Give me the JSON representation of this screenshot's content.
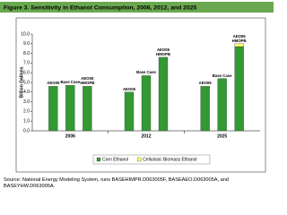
{
  "chart_data": {
    "type": "bar",
    "title": "Figure 3. Sensitivity in Ethanol Consumption, 2006, 2012, and 2025",
    "y_label": "Billion Gallons",
    "groups": [
      "2006",
      "2012",
      "2025"
    ],
    "categories": [
      "AEO05",
      "Base Case",
      "AEO05 HMOPB",
      "AEO05",
      "Base Case",
      "AEO05 HMOPB",
      "AEO05",
      "Base Case",
      "AEO05 HMOPB"
    ],
    "series": [
      {
        "name": "Corn Ethanol",
        "color": "#339933",
        "values": [
          4.6,
          4.7,
          4.6,
          4.0,
          5.7,
          7.6,
          4.6,
          5.4,
          8.7
        ]
      },
      {
        "name": "Cellulosic Biomass Ethanol",
        "color": "#ffff66",
        "values": [
          null,
          null,
          null,
          null,
          null,
          null,
          null,
          null,
          0.3
        ]
      }
    ],
    "ylim": [
      0,
      10
    ],
    "yticks": [
      {
        "value": 0,
        "label": "0.0"
      },
      {
        "value": 1,
        "label": "1.0"
      },
      {
        "value": 2,
        "label": "2.0"
      },
      {
        "value": 3,
        "label": "3.0"
      },
      {
        "value": 4,
        "label": "4.0"
      },
      {
        "value": 5,
        "label": "5.0"
      },
      {
        "value": 6,
        "label": "6.0"
      },
      {
        "value": 7,
        "label": "7.0"
      },
      {
        "value": 8,
        "label": "8.0"
      },
      {
        "value": 9,
        "label": "9.0"
      },
      {
        "value": 10,
        "label": "10.0"
      }
    ],
    "legend": "bottom",
    "source": "Source: National Energy Modeling System, runs BASEHIMPR.D063005F, BASEAEO.D063005A, and BASEYHW.D063005A."
  }
}
